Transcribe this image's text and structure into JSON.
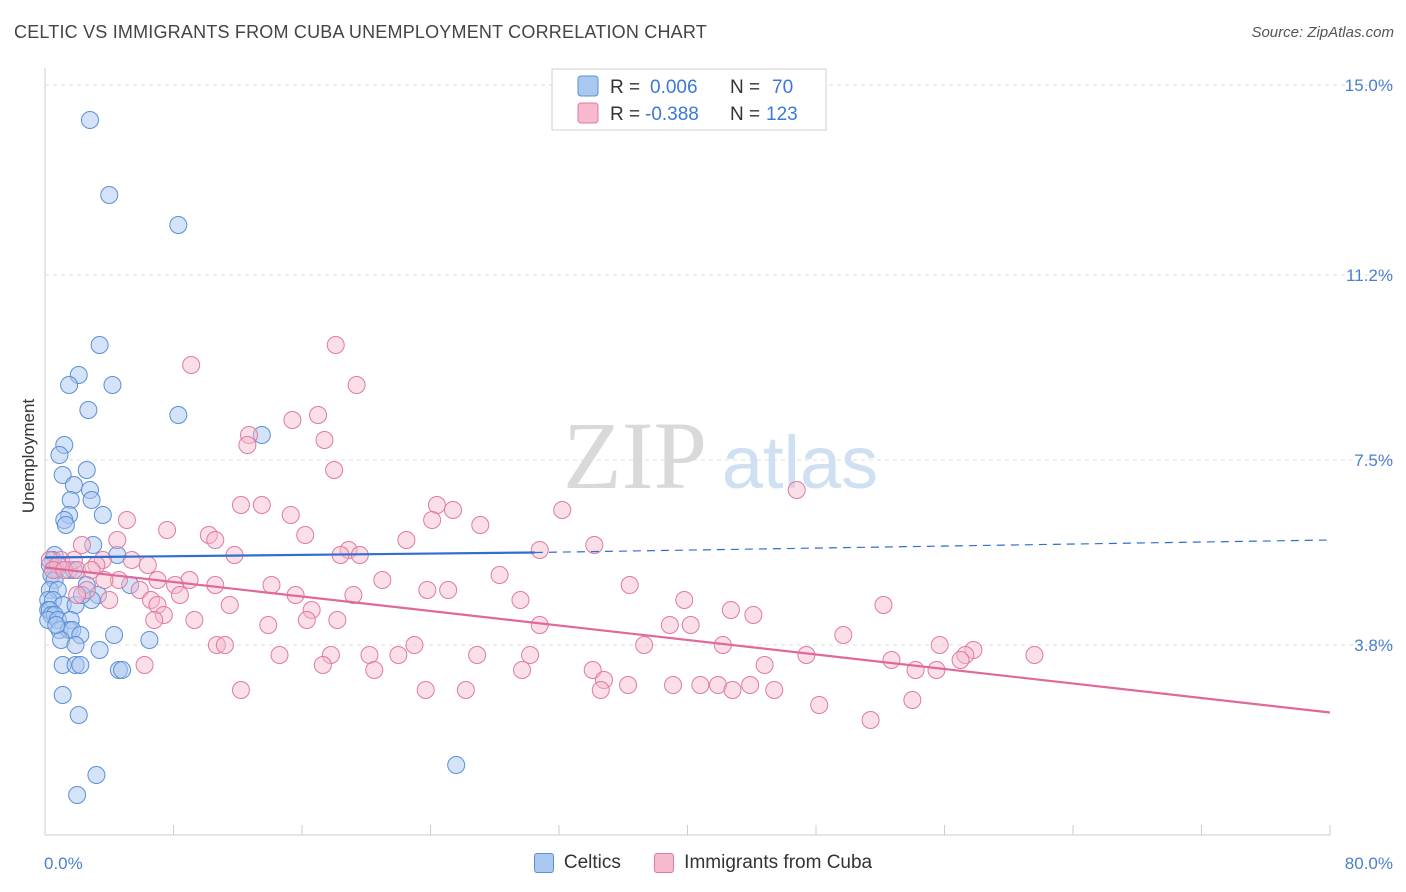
{
  "header": {
    "title": "CELTIC VS IMMIGRANTS FROM CUBA UNEMPLOYMENT CORRELATION CHART",
    "source": "Source: ZipAtlas.com"
  },
  "watermark": {
    "zip": "ZIP",
    "atlas": "atlas"
  },
  "legend_top": [
    {
      "r_label": "R =",
      "r_value": "0.006",
      "n_label": "N =",
      "n_value": "70"
    },
    {
      "r_label": "R =",
      "r_value": "-0.388",
      "n_label": "N =",
      "n_value": "123"
    }
  ],
  "legend_bottom": [
    "Celtics",
    "Immigrants from Cuba"
  ],
  "colors": {
    "celtic_fill": "#a9c8ef",
    "celtic_stroke": "#5b8fd6",
    "celtic_line": "#2f6fcf",
    "cuba_fill": "#f6b9cd",
    "cuba_stroke": "#e07aa0",
    "cuba_line": "#e0689a",
    "tick_label": "#4a7fd0",
    "grid": "#dddddd"
  },
  "chart_data": {
    "type": "scatter",
    "xlabel": "",
    "ylabel": "Unemployment",
    "xlim": [
      0,
      80
    ],
    "ylim": [
      0,
      15.5
    ],
    "x_tick_labels": [
      "0.0%",
      "80.0%"
    ],
    "y_ticks": [
      3.8,
      7.5,
      11.2,
      15.0
    ],
    "y_tick_labels": [
      "3.8%",
      "7.5%",
      "11.2%",
      "15.0%"
    ],
    "grid": true,
    "legend_position": "top-center",
    "series": [
      {
        "name": "Celtics",
        "r": 0.006,
        "n": 70,
        "trend": {
          "x0": 0,
          "y0": 5.55,
          "x1": 30.5,
          "y1": 5.65,
          "dash_to_x": 80,
          "dash_to_y": 5.9
        },
        "points": [
          [
            2.8,
            14.3
          ],
          [
            4.0,
            12.8
          ],
          [
            8.3,
            12.2
          ],
          [
            3.4,
            9.8
          ],
          [
            2.1,
            9.2
          ],
          [
            1.5,
            9.0
          ],
          [
            4.2,
            9.0
          ],
          [
            2.7,
            8.5
          ],
          [
            8.3,
            8.4
          ],
          [
            13.5,
            8.0
          ],
          [
            1.2,
            7.8
          ],
          [
            0.9,
            7.6
          ],
          [
            2.6,
            7.3
          ],
          [
            1.1,
            7.2
          ],
          [
            1.8,
            7.0
          ],
          [
            2.8,
            6.9
          ],
          [
            1.6,
            6.7
          ],
          [
            2.9,
            6.7
          ],
          [
            1.5,
            6.4
          ],
          [
            3.6,
            6.4
          ],
          [
            1.2,
            6.3
          ],
          [
            1.3,
            6.2
          ],
          [
            3.0,
            5.8
          ],
          [
            0.6,
            5.6
          ],
          [
            4.5,
            5.6
          ],
          [
            0.5,
            5.5
          ],
          [
            0.3,
            5.4
          ],
          [
            0.7,
            5.3
          ],
          [
            1.5,
            5.3
          ],
          [
            1.8,
            5.3
          ],
          [
            0.4,
            5.2
          ],
          [
            0.6,
            5.1
          ],
          [
            2.6,
            5.0
          ],
          [
            5.3,
            5.0
          ],
          [
            0.3,
            4.9
          ],
          [
            0.8,
            4.9
          ],
          [
            3.3,
            4.8
          ],
          [
            2.9,
            4.7
          ],
          [
            0.2,
            4.7
          ],
          [
            0.5,
            4.7
          ],
          [
            1.1,
            4.6
          ],
          [
            1.9,
            4.6
          ],
          [
            0.2,
            4.5
          ],
          [
            0.3,
            4.5
          ],
          [
            0.4,
            4.4
          ],
          [
            0.6,
            4.4
          ],
          [
            0.2,
            4.3
          ],
          [
            0.8,
            4.3
          ],
          [
            1.6,
            4.3
          ],
          [
            0.9,
            4.1
          ],
          [
            1.5,
            4.1
          ],
          [
            1.7,
            4.1
          ],
          [
            2.2,
            4.0
          ],
          [
            4.3,
            4.0
          ],
          [
            1.0,
            3.9
          ],
          [
            6.5,
            3.9
          ],
          [
            1.9,
            3.8
          ],
          [
            3.4,
            3.7
          ],
          [
            1.1,
            3.4
          ],
          [
            1.9,
            3.4
          ],
          [
            2.2,
            3.4
          ],
          [
            4.6,
            3.3
          ],
          [
            4.8,
            3.3
          ],
          [
            1.1,
            2.8
          ],
          [
            2.1,
            2.4
          ],
          [
            3.2,
            1.2
          ],
          [
            25.6,
            1.4
          ],
          [
            2.0,
            0.8
          ],
          [
            2.3,
            4.8
          ],
          [
            0.7,
            4.2
          ]
        ]
      },
      {
        "name": "Immigrants from Cuba",
        "r": -0.388,
        "n": 123,
        "trend": {
          "x0": 0,
          "y0": 5.35,
          "x1": 80,
          "y1": 2.45
        },
        "points": [
          [
            18.1,
            9.8
          ],
          [
            9.1,
            9.4
          ],
          [
            19.4,
            9.0
          ],
          [
            17.0,
            8.4
          ],
          [
            15.4,
            8.3
          ],
          [
            12.7,
            8.0
          ],
          [
            17.4,
            7.9
          ],
          [
            12.6,
            7.8
          ],
          [
            18.0,
            7.3
          ],
          [
            46.8,
            6.9
          ],
          [
            12.2,
            6.6
          ],
          [
            13.5,
            6.6
          ],
          [
            24.4,
            6.6
          ],
          [
            25.4,
            6.5
          ],
          [
            32.2,
            6.5
          ],
          [
            15.3,
            6.4
          ],
          [
            5.1,
            6.3
          ],
          [
            24.1,
            6.3
          ],
          [
            27.1,
            6.2
          ],
          [
            7.6,
            6.1
          ],
          [
            10.2,
            6.0
          ],
          [
            16.2,
            6.0
          ],
          [
            4.5,
            5.9
          ],
          [
            10.6,
            5.9
          ],
          [
            22.5,
            5.9
          ],
          [
            2.3,
            5.8
          ],
          [
            34.2,
            5.8
          ],
          [
            18.9,
            5.7
          ],
          [
            30.8,
            5.7
          ],
          [
            11.8,
            5.6
          ],
          [
            18.4,
            5.6
          ],
          [
            19.6,
            5.6
          ],
          [
            5.4,
            5.5
          ],
          [
            1.0,
            5.5
          ],
          [
            1.8,
            5.5
          ],
          [
            3.6,
            5.5
          ],
          [
            0.3,
            5.5
          ],
          [
            0.8,
            5.4
          ],
          [
            3.2,
            5.4
          ],
          [
            6.4,
            5.4
          ],
          [
            0.5,
            5.3
          ],
          [
            1.2,
            5.3
          ],
          [
            2.0,
            5.3
          ],
          [
            2.9,
            5.3
          ],
          [
            28.3,
            5.2
          ],
          [
            4.6,
            5.1
          ],
          [
            7.0,
            5.1
          ],
          [
            9.0,
            5.1
          ],
          [
            21.0,
            5.1
          ],
          [
            3.7,
            5.1
          ],
          [
            8.1,
            5.0
          ],
          [
            10.6,
            5.0
          ],
          [
            14.1,
            5.0
          ],
          [
            36.4,
            5.0
          ],
          [
            2.6,
            4.9
          ],
          [
            5.9,
            4.9
          ],
          [
            23.8,
            4.9
          ],
          [
            25.1,
            4.9
          ],
          [
            2.0,
            4.8
          ],
          [
            8.4,
            4.8
          ],
          [
            15.6,
            4.8
          ],
          [
            19.2,
            4.8
          ],
          [
            4.0,
            4.7
          ],
          [
            6.6,
            4.7
          ],
          [
            29.6,
            4.7
          ],
          [
            39.8,
            4.7
          ],
          [
            7.0,
            4.6
          ],
          [
            11.5,
            4.6
          ],
          [
            52.2,
            4.6
          ],
          [
            16.6,
            4.5
          ],
          [
            42.7,
            4.5
          ],
          [
            7.4,
            4.4
          ],
          [
            16.3,
            4.3
          ],
          [
            44.1,
            4.4
          ],
          [
            6.8,
            4.3
          ],
          [
            9.3,
            4.3
          ],
          [
            18.2,
            4.3
          ],
          [
            40.2,
            4.2
          ],
          [
            13.9,
            4.2
          ],
          [
            30.8,
            4.2
          ],
          [
            38.9,
            4.2
          ],
          [
            49.7,
            4.0
          ],
          [
            10.7,
            3.8
          ],
          [
            11.2,
            3.8
          ],
          [
            23.0,
            3.8
          ],
          [
            37.3,
            3.8
          ],
          [
            42.2,
            3.8
          ],
          [
            55.7,
            3.8
          ],
          [
            57.8,
            3.7
          ],
          [
            14.6,
            3.6
          ],
          [
            17.8,
            3.6
          ],
          [
            20.2,
            3.6
          ],
          [
            22.0,
            3.6
          ],
          [
            26.9,
            3.6
          ],
          [
            30.2,
            3.6
          ],
          [
            47.4,
            3.6
          ],
          [
            57.3,
            3.6
          ],
          [
            61.6,
            3.6
          ],
          [
            52.7,
            3.5
          ],
          [
            57.0,
            3.5
          ],
          [
            6.2,
            3.4
          ],
          [
            17.3,
            3.4
          ],
          [
            20.5,
            3.3
          ],
          [
            29.7,
            3.3
          ],
          [
            34.1,
            3.3
          ],
          [
            44.8,
            3.4
          ],
          [
            54.2,
            3.3
          ],
          [
            55.5,
            3.3
          ],
          [
            34.8,
            3.1
          ],
          [
            36.3,
            3.0
          ],
          [
            39.1,
            3.0
          ],
          [
            40.8,
            3.0
          ],
          [
            41.9,
            3.0
          ],
          [
            43.9,
            3.0
          ],
          [
            12.2,
            2.9
          ],
          [
            23.7,
            2.9
          ],
          [
            26.2,
            2.9
          ],
          [
            34.6,
            2.9
          ],
          [
            42.8,
            2.9
          ],
          [
            45.4,
            2.9
          ],
          [
            48.2,
            2.6
          ],
          [
            51.4,
            2.3
          ],
          [
            54.0,
            2.7
          ]
        ]
      }
    ]
  }
}
